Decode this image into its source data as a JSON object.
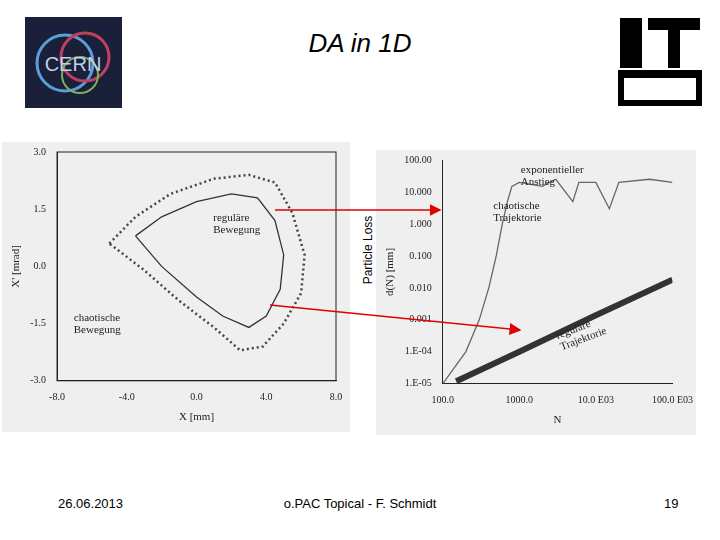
{
  "slide": {
    "title": "DA in 1D",
    "logo_text": "CERN",
    "side_label": "Particle Loss",
    "footer": {
      "date": "26.06.2013",
      "center": "o.PAC Topical - F. Schmidt",
      "page": "19"
    }
  },
  "chart_data": [
    {
      "type": "scatter",
      "x_label": "X [mm]",
      "y_label": "X' [mrad]",
      "xlim": [
        -8,
        8
      ],
      "xticks": [
        {
          "value": -8,
          "label": "-8.0"
        },
        {
          "value": -4,
          "label": "-4.0"
        },
        {
          "value": 0,
          "label": "0.0"
        },
        {
          "value": 4,
          "label": "4.0"
        },
        {
          "value": 8,
          "label": "8.0"
        }
      ],
      "ylim": [
        -3,
        3
      ],
      "yticks": [
        {
          "value": -3,
          "label": "-3.0"
        },
        {
          "value": -1.5,
          "label": "-1.5"
        },
        {
          "value": 0,
          "label": "0.0"
        },
        {
          "value": 1.5,
          "label": "1.5"
        },
        {
          "value": 3,
          "label": "3.0"
        }
      ],
      "grid": false,
      "series": [
        {
          "name": "reguläre Bewegung",
          "color": "#333333",
          "marker": "none",
          "line_style": "solid",
          "x": [
            -3.5,
            -2,
            0,
            2,
            3.5,
            4.5,
            5,
            4.8,
            4,
            3,
            1.5,
            0,
            -2,
            -3.5
          ],
          "values": [
            0.8,
            1.3,
            1.7,
            1.9,
            1.8,
            1.2,
            0.3,
            -0.6,
            -1.3,
            -1.6,
            -1.3,
            -0.8,
            0,
            0.8
          ]
        },
        {
          "name": "chaotische Bewegung",
          "color": "#444444",
          "marker": "none",
          "line_style": "dotted",
          "x": [
            -5,
            -3.5,
            -1.5,
            1,
            3,
            4.5,
            5.5,
            6.2,
            6,
            5,
            3.8,
            2.5,
            1,
            -1,
            -3,
            -5
          ],
          "values": [
            0.6,
            1.3,
            1.9,
            2.3,
            2.4,
            2.2,
            1.4,
            0.3,
            -0.7,
            -1.5,
            -2.1,
            -2.2,
            -1.6,
            -0.9,
            -0.1,
            0.6
          ]
        }
      ]
    },
    {
      "type": "line",
      "log": true,
      "x_label": "N",
      "y_label": "d(N) [mm]",
      "annotations": [
        "exponentieller Anstieg"
      ],
      "xlim": [
        100,
        100000
      ],
      "xticks": [
        {
          "value": 100,
          "label": "100.0"
        },
        {
          "value": 1000,
          "label": "1000.0"
        },
        {
          "value": 10000,
          "label": "10.0 E03"
        },
        {
          "value": 100000,
          "label": "100.0 E03"
        }
      ],
      "ylim": [
        1e-05,
        100
      ],
      "yticks": [
        {
          "value": 1e-05,
          "label": "1.E-05"
        },
        {
          "value": 0.0001,
          "label": "1.E-04"
        },
        {
          "value": 0.001,
          "label": "0.001"
        },
        {
          "value": 0.01,
          "label": "0.010"
        },
        {
          "value": 0.1,
          "label": "0.100"
        },
        {
          "value": 1,
          "label": "1.000"
        },
        {
          "value": 10,
          "label": "10.000"
        },
        {
          "value": 100,
          "label": "100.00"
        }
      ],
      "grid": false,
      "series": [
        {
          "name": "chaotische Trajektorie",
          "color": "#666666",
          "marker": "none",
          "line_style": "solid",
          "x": [
            100,
            200,
            300,
            400,
            500,
            600,
            700,
            800,
            1000,
            2000,
            3000,
            5000,
            6000,
            10000,
            15000,
            20000,
            50000,
            100000
          ],
          "values": [
            1e-05,
            0.0001,
            0.001,
            0.01,
            0.1,
            1,
            5,
            15,
            20,
            15,
            25,
            5,
            20,
            20,
            3,
            20,
            25,
            20
          ]
        },
        {
          "name": "reguläre Trajektorie",
          "color": "#333333",
          "marker": "none",
          "line_style": "thick",
          "x": [
            150,
            1000,
            10000,
            100000
          ],
          "values": [
            1.2e-05,
            0.0001,
            0.0014,
            0.018
          ]
        }
      ]
    }
  ]
}
